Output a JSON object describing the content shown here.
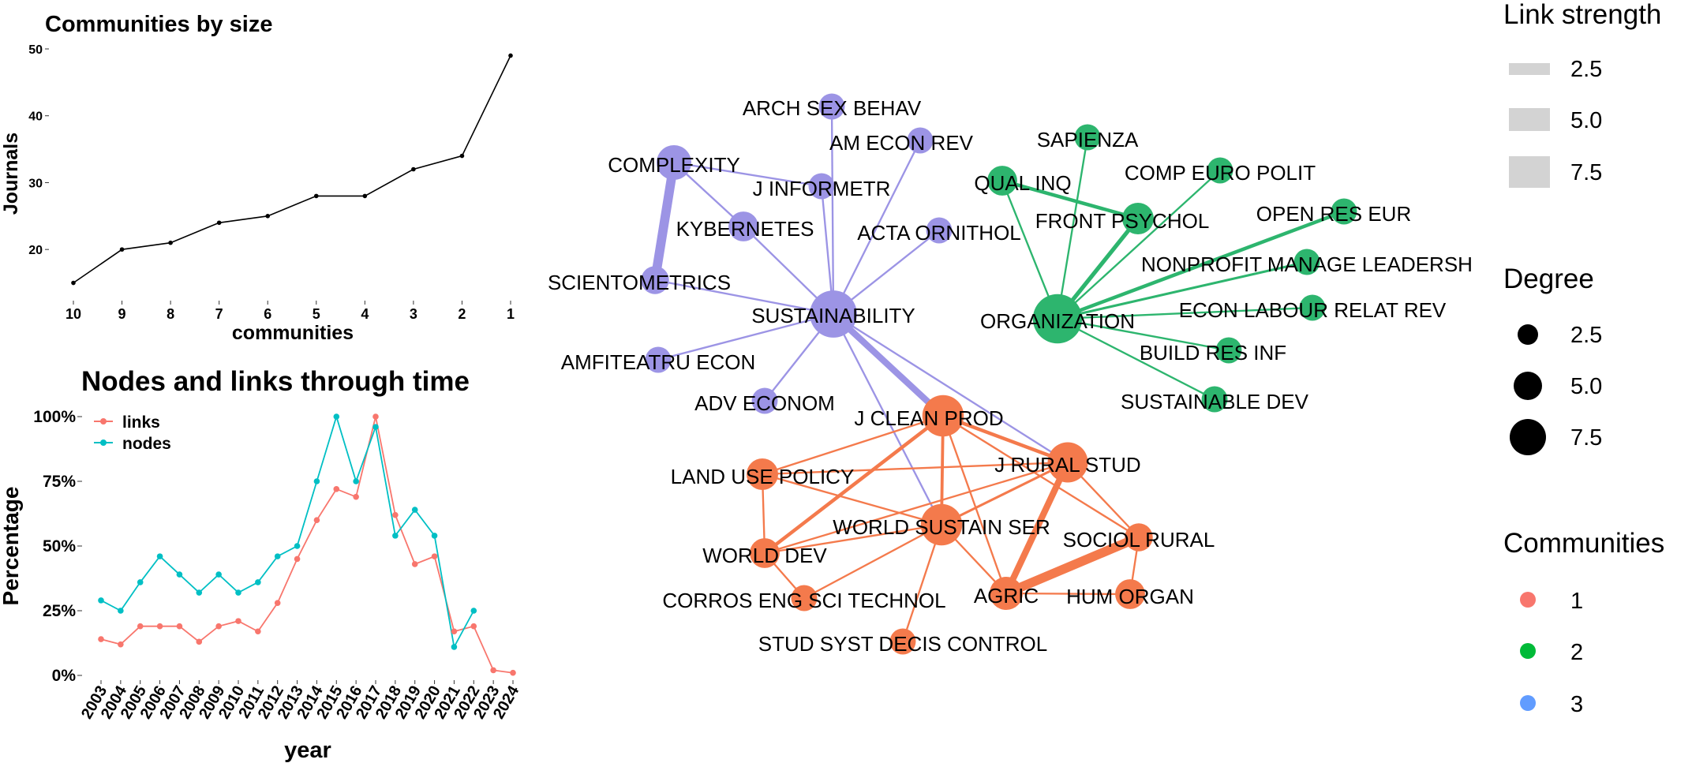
{
  "chart_data": [
    {
      "type": "line",
      "title": "Communities by size",
      "xlabel": "communities",
      "ylabel": "Journals",
      "categories": [
        "10",
        "9",
        "8",
        "7",
        "6",
        "5",
        "4",
        "3",
        "2",
        "1"
      ],
      "values": [
        15,
        20,
        21,
        24,
        25,
        28,
        28,
        32,
        34,
        49
      ],
      "y_ticks": [
        "20",
        "30",
        "40",
        "50"
      ],
      "y_tick_values": [
        20,
        30,
        40,
        50
      ],
      "ylim": [
        14,
        50
      ],
      "color": "#000000"
    },
    {
      "type": "line",
      "title": "Nodes and links through time",
      "xlabel": "year",
      "ylabel": "Percentage",
      "categories": [
        "2003",
        "2004",
        "2005",
        "2006",
        "2007",
        "2008",
        "2009",
        "2010",
        "2011",
        "2012",
        "2013",
        "2014",
        "2015",
        "2016",
        "2017",
        "2018",
        "2019",
        "2020",
        "2021",
        "2022",
        "2023",
        "2024"
      ],
      "y_ticks": [
        "0%",
        "25%",
        "50%",
        "75%",
        "100%"
      ],
      "y_tick_values": [
        0,
        25,
        50,
        75,
        100
      ],
      "ylim": [
        0,
        100
      ],
      "series": [
        {
          "name": "links",
          "color": "#F8766D",
          "values": [
            14,
            12,
            19,
            19,
            19,
            13,
            19,
            21,
            17,
            28,
            45,
            60,
            72,
            69,
            100,
            62,
            43,
            46,
            17,
            19,
            2,
            1
          ]
        },
        {
          "name": "nodes",
          "color": "#00BFC4",
          "values": [
            29,
            25,
            36,
            46,
            39,
            32,
            39,
            32,
            36,
            46,
            50,
            75,
            100,
            75,
            96,
            54,
            64,
            54,
            11,
            25,
            null,
            null
          ]
        }
      ],
      "legend_placement": "top-left"
    },
    {
      "type": "network",
      "community_colors": {
        "1": "#F47A4C",
        "2": "#2DB56E",
        "3": "#9C94E5"
      },
      "nodes": [
        {
          "id": "SUSTAINABILITY",
          "community": "3",
          "size": 10
        },
        {
          "id": "COMPLEXITY",
          "community": "3",
          "size": 5
        },
        {
          "id": "KYBERNETES",
          "community": "3",
          "size": 3.5
        },
        {
          "id": "SCIENTOMETRICS",
          "community": "3",
          "size": 3
        },
        {
          "id": "J INFORMETR",
          "community": "3",
          "size": 2.5
        },
        {
          "id": "ARCH SEX BEHAV",
          "community": "3",
          "size": 2.5
        },
        {
          "id": "AM ECON REV",
          "community": "3",
          "size": 2.5
        },
        {
          "id": "ACTA ORNITHOL",
          "community": "3",
          "size": 2.5
        },
        {
          "id": "AMFITEATRU ECON",
          "community": "3",
          "size": 2.5
        },
        {
          "id": "ADV ECONOM",
          "community": "3",
          "size": 2.5
        },
        {
          "id": "ORGANIZATION",
          "community": "2",
          "size": 11
        },
        {
          "id": "QUAL INQ",
          "community": "2",
          "size": 3.5
        },
        {
          "id": "SAPIENZA",
          "community": "2",
          "size": 2.5
        },
        {
          "id": "FRONT PSYCHOL",
          "community": "2",
          "size": 4
        },
        {
          "id": "COMP EURO POLIT",
          "community": "2",
          "size": 2.5
        },
        {
          "id": "OPEN RES EUR",
          "community": "2",
          "size": 2.5
        },
        {
          "id": "NONPROFIT MANAGE LEADERSH",
          "community": "2",
          "size": 2.5
        },
        {
          "id": "ECON LABOUR RELAT REV",
          "community": "2",
          "size": 2.5
        },
        {
          "id": "BUILD RES INF",
          "community": "2",
          "size": 2.5
        },
        {
          "id": "SUSTAINABLE DEV",
          "community": "2",
          "size": 2.5
        },
        {
          "id": "J CLEAN PROD",
          "community": "1",
          "size": 7.5
        },
        {
          "id": "J RURAL STUD",
          "community": "1",
          "size": 7
        },
        {
          "id": "WORLD SUSTAIN SER",
          "community": "1",
          "size": 7.5
        },
        {
          "id": "LAND USE POLICY",
          "community": "1",
          "size": 4
        },
        {
          "id": "WORLD DEV",
          "community": "1",
          "size": 3.5
        },
        {
          "id": "SOCIOL RURAL",
          "community": "1",
          "size": 3
        },
        {
          "id": "AGRIC",
          "community": "1",
          "size": 4.5
        },
        {
          "id": "HUM ORGAN",
          "community": "1",
          "size": 3.5
        },
        {
          "id": "CORROS ENG SCI TECHNOL",
          "community": "1",
          "size": 2.5
        },
        {
          "id": "STUD SYST DECIS CONTROL",
          "community": "1",
          "size": 2.5
        }
      ],
      "links": [
        {
          "source": "COMPLEXITY",
          "target": "SCIENTOMETRICS",
          "weight": 7.5
        },
        {
          "source": "COMPLEXITY",
          "target": "KYBERNETES",
          "weight": 1
        },
        {
          "source": "COMPLEXITY",
          "target": "J INFORMETR",
          "weight": 1
        },
        {
          "source": "KYBERNETES",
          "target": "SUSTAINABILITY",
          "weight": 1
        },
        {
          "source": "J INFORMETR",
          "target": "SUSTAINABILITY",
          "weight": 1
        },
        {
          "source": "ARCH SEX BEHAV",
          "target": "SUSTAINABILITY",
          "weight": 1
        },
        {
          "source": "AM ECON REV",
          "target": "SUSTAINABILITY",
          "weight": 1
        },
        {
          "source": "ACTA ORNITHOL",
          "target": "SUSTAINABILITY",
          "weight": 1
        },
        {
          "source": "SCIENTOMETRICS",
          "target": "SUSTAINABILITY",
          "weight": 1
        },
        {
          "source": "AMFITEATRU ECON",
          "target": "SUSTAINABILITY",
          "weight": 1
        },
        {
          "source": "ADV ECONOM",
          "target": "SUSTAINABILITY",
          "weight": 1
        },
        {
          "source": "SUSTAINABILITY",
          "target": "J CLEAN PROD",
          "weight": 5
        },
        {
          "source": "SUSTAINABILITY",
          "target": "WORLD SUSTAIN SER",
          "weight": 1
        },
        {
          "source": "SUSTAINABILITY",
          "target": "J RURAL STUD",
          "weight": 1
        },
        {
          "source": "ORGANIZATION",
          "target": "QUAL INQ",
          "weight": 1
        },
        {
          "source": "ORGANIZATION",
          "target": "SAPIENZA",
          "weight": 1
        },
        {
          "source": "ORGANIZATION",
          "target": "FRONT PSYCHOL",
          "weight": 3
        },
        {
          "source": "ORGANIZATION",
          "target": "COMP EURO POLIT",
          "weight": 1
        },
        {
          "source": "ORGANIZATION",
          "target": "OPEN RES EUR",
          "weight": 2.5
        },
        {
          "source": "ORGANIZATION",
          "target": "NONPROFIT MANAGE LEADERSH",
          "weight": 1.5
        },
        {
          "source": "ORGANIZATION",
          "target": "ECON LABOUR RELAT REV",
          "weight": 1
        },
        {
          "source": "ORGANIZATION",
          "target": "BUILD RES INF",
          "weight": 1
        },
        {
          "source": "ORGANIZATION",
          "target": "SUSTAINABLE DEV",
          "weight": 1
        },
        {
          "source": "QUAL INQ",
          "target": "FRONT PSYCHOL",
          "weight": 2.5
        },
        {
          "source": "J CLEAN PROD",
          "target": "J RURAL STUD",
          "weight": 2.5
        },
        {
          "source": "J CLEAN PROD",
          "target": "WORLD SUSTAIN SER",
          "weight": 2
        },
        {
          "source": "J CLEAN PROD",
          "target": "LAND USE POLICY",
          "weight": 1
        },
        {
          "source": "J CLEAN PROD",
          "target": "WORLD DEV",
          "weight": 2.5
        },
        {
          "source": "J CLEAN PROD",
          "target": "AGRIC",
          "weight": 1
        },
        {
          "source": "J CLEAN PROD",
          "target": "SOCIOL RURAL",
          "weight": 1
        },
        {
          "source": "J RURAL STUD",
          "target": "WORLD SUSTAIN SER",
          "weight": 1.5
        },
        {
          "source": "J RURAL STUD",
          "target": "AGRIC",
          "weight": 5
        },
        {
          "source": "J RURAL STUD",
          "target": "SOCIOL RURAL",
          "weight": 1
        },
        {
          "source": "J RURAL STUD",
          "target": "WORLD DEV",
          "weight": 1
        },
        {
          "source": "J RURAL STUD",
          "target": "LAND USE POLICY",
          "weight": 1
        },
        {
          "source": "WORLD SUSTAIN SER",
          "target": "WORLD DEV",
          "weight": 1
        },
        {
          "source": "WORLD SUSTAIN SER",
          "target": "LAND USE POLICY",
          "weight": 1
        },
        {
          "source": "WORLD SUSTAIN SER",
          "target": "AGRIC",
          "weight": 1
        },
        {
          "source": "WORLD SUSTAIN SER",
          "target": "CORROS ENG SCI TECHNOL",
          "weight": 1
        },
        {
          "source": "WORLD SUSTAIN SER",
          "target": "STUD SYST DECIS CONTROL",
          "weight": 1
        },
        {
          "source": "LAND USE POLICY",
          "target": "WORLD DEV",
          "weight": 1
        },
        {
          "source": "WORLD DEV",
          "target": "CORROS ENG SCI TECHNOL",
          "weight": 1
        },
        {
          "source": "AGRIC",
          "target": "SOCIOL RURAL",
          "weight": 7.5
        },
        {
          "source": "AGRIC",
          "target": "HUM ORGAN",
          "weight": 1
        },
        {
          "source": "SOCIOL RURAL",
          "target": "HUM ORGAN",
          "weight": 1
        }
      ],
      "legends": [
        {
          "title": "Link strength",
          "kind": "width",
          "labels": [
            "2.5",
            "5.0",
            "7.5"
          ],
          "values": [
            2.5,
            5.0,
            7.5
          ]
        },
        {
          "title": "Degree",
          "kind": "size",
          "labels": [
            "2.5",
            "5.0",
            "7.5"
          ],
          "values": [
            2.5,
            5.0,
            7.5
          ]
        },
        {
          "title": "Communities",
          "kind": "color",
          "labels": [
            "1",
            "2",
            "3"
          ],
          "colors": [
            "#F8766D",
            "#00BA38",
            "#619CFF"
          ]
        }
      ]
    }
  ]
}
